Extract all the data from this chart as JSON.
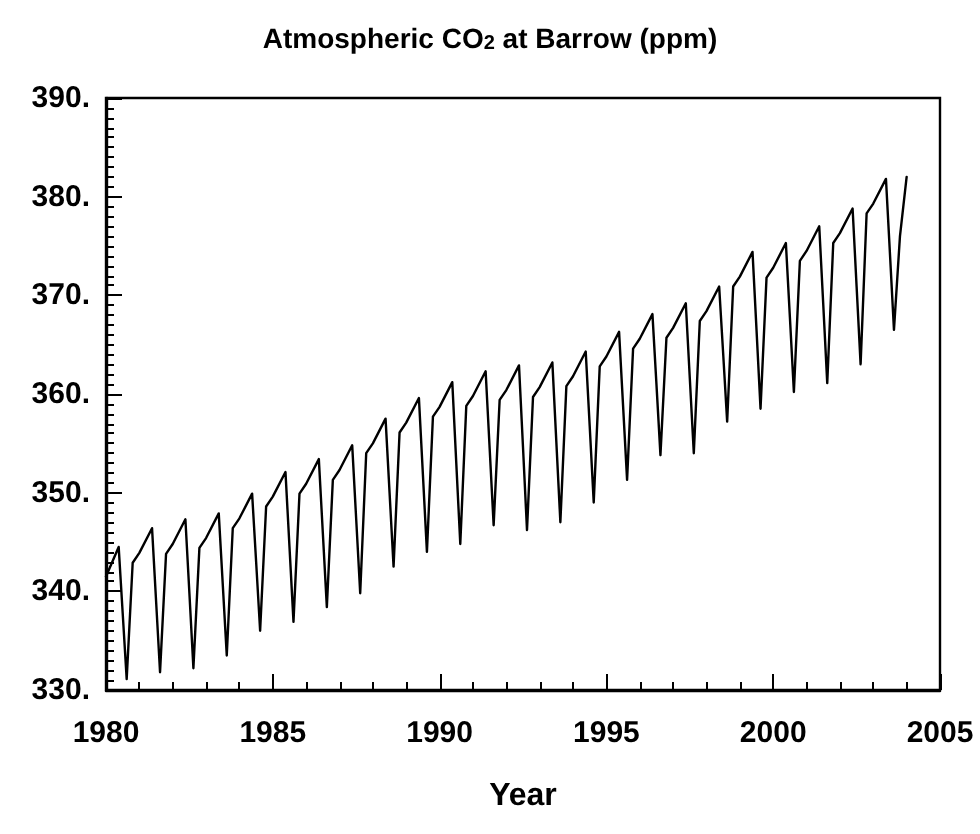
{
  "chart_data": {
    "type": "line",
    "title": "Atmospheric CO$_{2}$ at Barrow (ppm)",
    "xlabel": "Year",
    "grid": false,
    "marker": "none",
    "line_style": "solid",
    "xlim": [
      1980,
      2005
    ],
    "xticks": [
      1980,
      1985,
      1990,
      1995,
      2000,
      2005
    ],
    "ylim": [
      330,
      390
    ],
    "yticks": [
      {
        "value": 330,
        "label": "330."
      },
      {
        "value": 340,
        "label": "340."
      },
      {
        "value": 350,
        "label": "350."
      },
      {
        "value": 360,
        "label": "360."
      },
      {
        "value": 370,
        "label": "370."
      },
      {
        "value": 380,
        "label": "380."
      },
      {
        "value": 390,
        "label": "390."
      }
    ],
    "series": [
      {
        "color": "#000000",
        "x": [
          1980.0,
          1980.38,
          1980.5,
          1980.62,
          1980.8,
          1981.0,
          1981.38,
          1981.5,
          1981.62,
          1981.8,
          1982.0,
          1982.38,
          1982.5,
          1982.62,
          1982.8,
          1983.0,
          1983.38,
          1983.5,
          1983.62,
          1983.8,
          1984.0,
          1984.38,
          1984.5,
          1984.62,
          1984.8,
          1985.0,
          1985.38,
          1985.5,
          1985.62,
          1985.8,
          1986.0,
          1986.38,
          1986.5,
          1986.62,
          1986.8,
          1987.0,
          1987.38,
          1987.5,
          1987.62,
          1987.8,
          1988.0,
          1988.38,
          1988.5,
          1988.62,
          1988.8,
          1989.0,
          1989.38,
          1989.5,
          1989.62,
          1989.8,
          1990.0,
          1990.38,
          1990.5,
          1990.62,
          1990.8,
          1991.0,
          1991.38,
          1991.5,
          1991.62,
          1991.8,
          1992.0,
          1992.38,
          1992.5,
          1992.62,
          1992.8,
          1993.0,
          1993.38,
          1993.5,
          1993.62,
          1993.8,
          1994.0,
          1994.38,
          1994.5,
          1994.62,
          1994.8,
          1995.0,
          1995.38,
          1995.5,
          1995.62,
          1995.8,
          1996.0,
          1996.38,
          1996.5,
          1996.62,
          1996.8,
          1997.0,
          1997.38,
          1997.5,
          1997.62,
          1997.8,
          1998.0,
          1998.38,
          1998.5,
          1998.62,
          1998.8,
          1999.0,
          1999.38,
          1999.5,
          1999.62,
          1999.8,
          2000.0,
          2000.38,
          2000.5,
          2000.62,
          2000.8,
          2001.0,
          2001.38,
          2001.5,
          2001.62,
          2001.8,
          2002.0,
          2002.38,
          2002.5,
          2002.62,
          2002.8,
          2003.0,
          2003.38,
          2003.5,
          2003.62,
          2003.8,
          2004.0
        ],
        "values": [
          341.5,
          344.5,
          337.8,
          331.1,
          342.9,
          343.9,
          346.4,
          339.1,
          331.8,
          343.8,
          344.8,
          347.3,
          339.8,
          332.2,
          344.4,
          345.4,
          347.9,
          340.7,
          333.5,
          346.4,
          347.4,
          349.9,
          343.0,
          336.0,
          348.6,
          349.6,
          352.1,
          344.5,
          336.9,
          349.9,
          350.9,
          353.4,
          345.9,
          338.4,
          351.3,
          352.3,
          354.8,
          347.3,
          339.8,
          354.0,
          355.0,
          357.5,
          350.0,
          342.5,
          356.1,
          357.1,
          359.6,
          351.8,
          344.0,
          357.7,
          358.7,
          361.2,
          353.0,
          344.8,
          358.8,
          359.8,
          362.3,
          354.5,
          346.7,
          359.4,
          360.4,
          362.9,
          354.6,
          346.2,
          359.7,
          360.7,
          363.2,
          355.1,
          347.0,
          360.8,
          361.8,
          364.3,
          356.7,
          349.0,
          362.8,
          363.8,
          366.3,
          358.8,
          351.3,
          364.6,
          365.6,
          368.1,
          361.0,
          353.8,
          365.7,
          366.7,
          369.2,
          361.6,
          354.0,
          367.4,
          368.4,
          370.9,
          364.1,
          357.2,
          370.9,
          371.9,
          374.4,
          366.5,
          358.5,
          371.8,
          372.8,
          375.3,
          367.8,
          360.2,
          373.5,
          374.5,
          377.0,
          369.1,
          361.1,
          375.3,
          376.3,
          378.8,
          370.9,
          363.0,
          378.3,
          379.3,
          381.8,
          374.2,
          366.5,
          376.0,
          382.0
        ]
      }
    ]
  }
}
